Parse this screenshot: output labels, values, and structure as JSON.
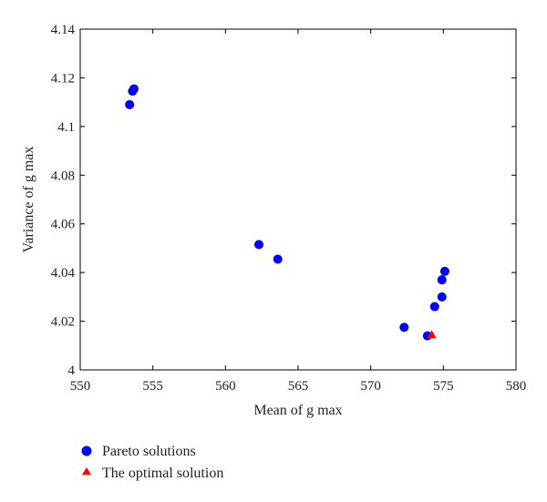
{
  "chart_data": {
    "type": "scatter",
    "xlabel": "Mean of g max",
    "ylabel": "Variance of g max",
    "xlim": [
      550,
      580
    ],
    "ylim": [
      4.0,
      4.14
    ],
    "x_ticks": [
      "550",
      "555",
      "560",
      "565",
      "570",
      "575",
      "580"
    ],
    "y_ticks": [
      "4",
      "4.02",
      "4.04",
      "4.06",
      "4.08",
      "4.1",
      "4.12",
      "4.14"
    ],
    "grid": false,
    "legend_position": "bottom-left, below plot",
    "series": [
      {
        "name": "Pareto solutions",
        "marker": "circle",
        "color": "#0000ff",
        "points": [
          {
            "x": 553.7,
            "y": 4.1155
          },
          {
            "x": 553.6,
            "y": 4.1145
          },
          {
            "x": 553.4,
            "y": 4.109
          },
          {
            "x": 562.3,
            "y": 4.0515
          },
          {
            "x": 563.6,
            "y": 4.0455
          },
          {
            "x": 572.3,
            "y": 4.0175
          },
          {
            "x": 573.9,
            "y": 4.014
          },
          {
            "x": 574.4,
            "y": 4.026
          },
          {
            "x": 574.9,
            "y": 4.03
          },
          {
            "x": 574.9,
            "y": 4.037
          },
          {
            "x": 575.1,
            "y": 4.0405
          }
        ]
      },
      {
        "name": "The optimal solution",
        "marker": "triangle",
        "color": "#ff0000",
        "points": [
          {
            "x": 574.2,
            "y": 4.0145
          }
        ]
      }
    ]
  }
}
